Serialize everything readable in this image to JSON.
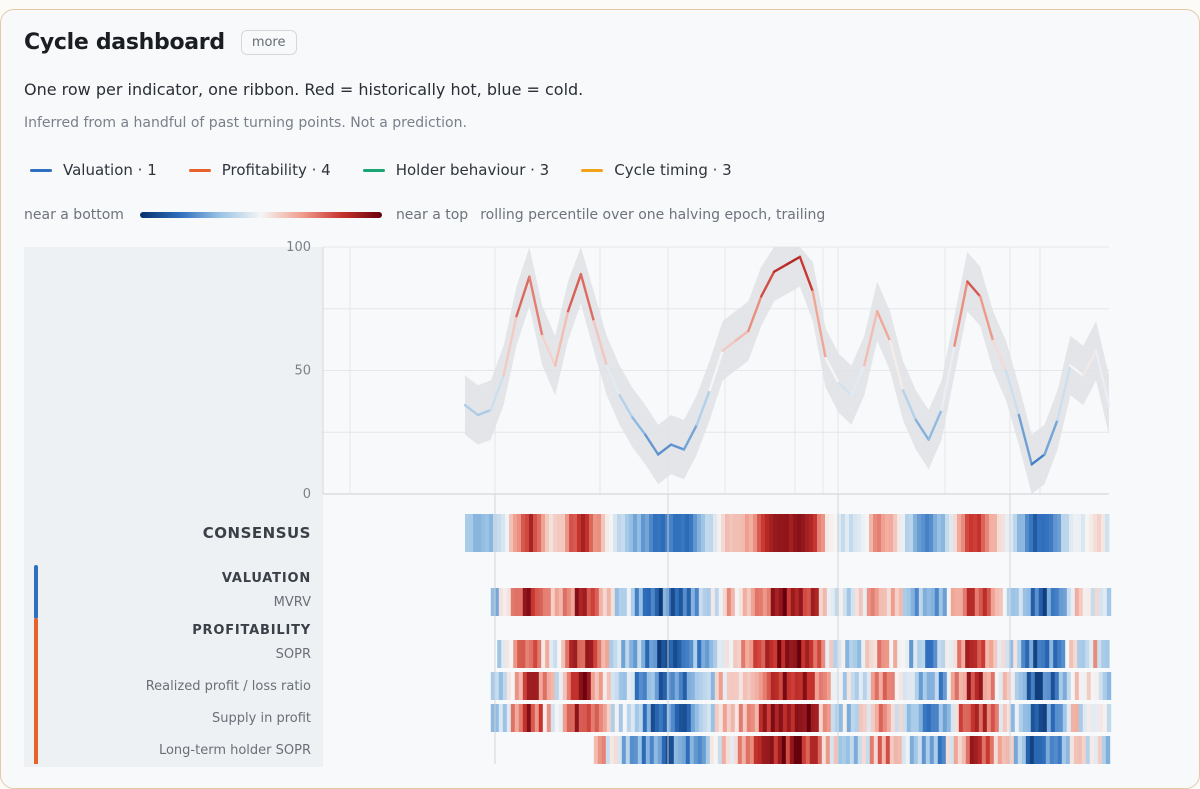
{
  "header": {
    "title": "Cycle dashboard",
    "more_label": "more",
    "subtitle": "One row per indicator, one ribbon. Red = historically hot, blue = cold.",
    "note": "Inferred from a handful of past turning points. Not a prediction."
  },
  "legend": [
    {
      "label": "Valuation · 1",
      "color": "#2f6fc0"
    },
    {
      "label": "Profitability · 4",
      "color": "#e8622c"
    },
    {
      "label": "Holder behaviour · 3",
      "color": "#1aa673"
    },
    {
      "label": "Cycle timing · 3",
      "color": "#f0a21a"
    }
  ],
  "scale": {
    "low_label": "near a bottom",
    "high_label": "near a top",
    "caption": "rolling percentile over one halving epoch, trailing"
  },
  "colors": {
    "cold": "#08306b",
    "hot": "#67000d",
    "neutral": "#f5f5f5",
    "band": "#dfe2e5"
  },
  "chart_data": {
    "type": "line",
    "y_ticks": [
      "100",
      "50",
      "0"
    ],
    "ylim": [
      0,
      100
    ],
    "x": [
      0,
      2,
      4,
      6,
      8,
      10,
      12,
      14,
      16,
      18,
      20,
      22,
      24,
      26,
      28,
      30,
      32,
      34,
      36,
      38,
      40,
      42,
      44,
      46,
      48,
      50,
      52,
      54,
      56,
      58,
      60,
      62,
      64,
      66,
      68,
      70,
      72,
      74,
      76,
      78,
      80,
      82,
      84,
      86,
      88,
      90,
      92,
      94,
      96,
      98,
      100
    ],
    "series": [
      {
        "values": [
          36,
          32,
          34,
          48,
          72,
          88,
          64,
          52,
          74,
          89,
          70,
          52,
          40,
          31,
          24,
          16,
          20,
          18,
          28,
          42,
          58,
          62,
          66,
          80,
          90,
          93,
          96,
          82,
          55,
          45,
          40,
          52,
          74,
          62,
          42,
          30,
          22,
          34,
          60,
          86,
          80,
          62,
          50,
          32,
          12,
          16,
          30,
          52,
          48,
          58,
          36
        ]
      }
    ],
    "band_spread": 12,
    "rows": [
      {
        "kind": "consensus",
        "label": "CONSENSUS",
        "start": 0
      },
      {
        "kind": "group",
        "label": "VALUATION",
        "group_color": "#2f6fc0"
      },
      {
        "kind": "indicator",
        "label": "MVRV",
        "start": 4
      },
      {
        "kind": "group",
        "label": "PROFITABILITY",
        "group_color": "#e8622c"
      },
      {
        "kind": "indicator",
        "label": "SOPR",
        "start": 5
      },
      {
        "kind": "indicator",
        "label": "Realized profit / loss ratio",
        "start": 4
      },
      {
        "kind": "indicator",
        "label": "Supply in profit",
        "start": 4
      },
      {
        "kind": "indicator",
        "label": "Long-term holder SOPR",
        "start": 20
      }
    ]
  }
}
